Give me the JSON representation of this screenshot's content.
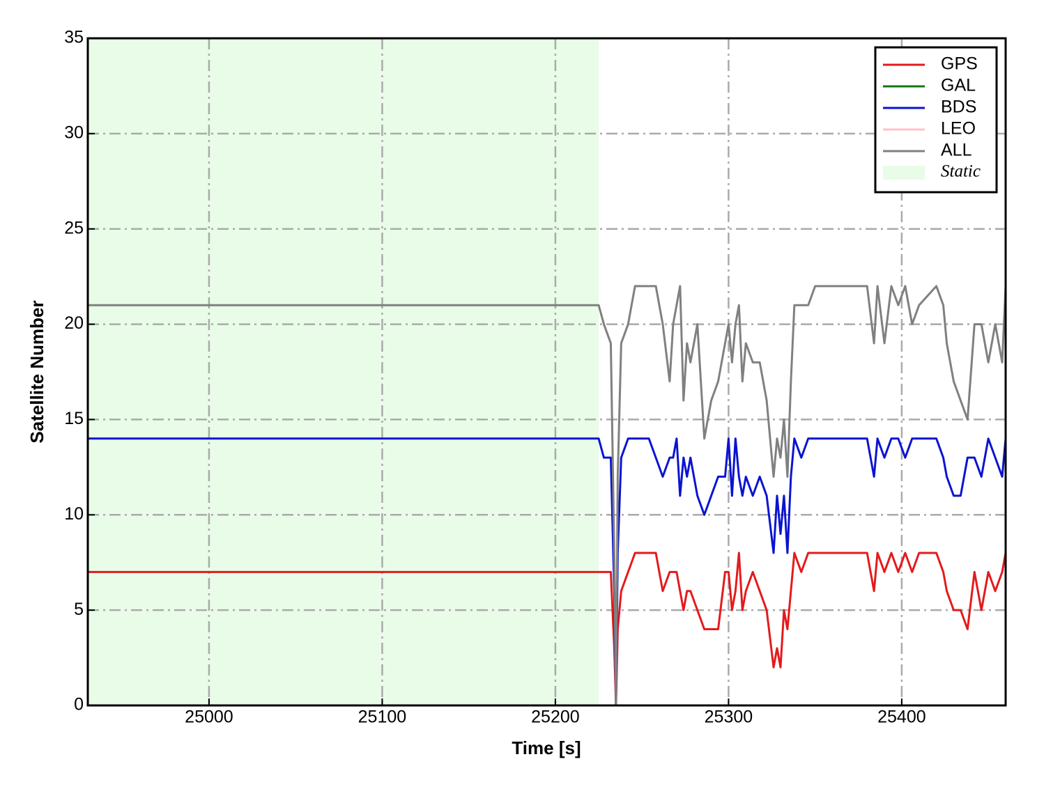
{
  "chart_data": {
    "type": "line",
    "xlabel": "Time [s]",
    "ylabel": "Satellite Number",
    "xlim": [
      24930,
      25460
    ],
    "ylim": [
      0,
      35
    ],
    "xticks": [
      25000,
      25100,
      25200,
      25300,
      25400
    ],
    "yticks": [
      0,
      5,
      10,
      15,
      20,
      25,
      30,
      35
    ],
    "grid": true,
    "legend": "upper right",
    "shade": {
      "name": "Static",
      "color": "#e8fce8",
      "x": [
        24930,
        25225
      ]
    },
    "x": [
      24930,
      25225,
      25228,
      25232,
      25234,
      25235,
      25236,
      25238,
      25242,
      25246,
      25250,
      25254,
      25258,
      25262,
      25266,
      25268,
      25270,
      25272,
      25274,
      25276,
      25278,
      25282,
      25286,
      25290,
      25294,
      25298,
      25300,
      25302,
      25304,
      25306,
      25308,
      25310,
      25314,
      25318,
      25322,
      25326,
      25328,
      25330,
      25332,
      25334,
      25336,
      25338,
      25342,
      25346,
      25350,
      25360,
      25370,
      25380,
      25384,
      25386,
      25390,
      25394,
      25398,
      25402,
      25406,
      25410,
      25420,
      25424,
      25426,
      25430,
      25434,
      25438,
      25442,
      25446,
      25450,
      25454,
      25458,
      25460
    ],
    "series": [
      {
        "name": "GPS",
        "color": "#e41a1c",
        "values": [
          7,
          7,
          7,
          7,
          3,
          0,
          4,
          6,
          7,
          8,
          8,
          8,
          8,
          6,
          7,
          7,
          7,
          6,
          5,
          6,
          6,
          5,
          4,
          4,
          4,
          7,
          7,
          5,
          6,
          8,
          5,
          6,
          7,
          6,
          5,
          2,
          3,
          2,
          5,
          4,
          6,
          8,
          7,
          8,
          8,
          8,
          8,
          8,
          6,
          8,
          7,
          8,
          7,
          8,
          7,
          8,
          8,
          7,
          6,
          5,
          5,
          4,
          7,
          5,
          7,
          6,
          7,
          8
        ]
      },
      {
        "name": "GAL",
        "color": "#117711",
        "values": [
          0,
          0,
          0,
          0,
          0,
          0,
          0,
          0,
          0,
          0,
          0,
          0,
          0,
          0,
          0,
          0,
          0,
          0,
          0,
          0,
          0,
          0,
          0,
          0,
          0,
          0,
          0,
          0,
          0,
          0,
          0,
          0,
          0,
          0,
          0,
          0,
          0,
          0,
          0,
          0,
          0,
          0,
          0,
          0,
          0,
          0,
          0,
          0,
          0,
          0,
          0,
          0,
          0,
          0,
          0,
          0,
          0,
          0,
          0,
          0,
          0,
          0,
          0,
          0,
          0,
          0,
          0,
          0
        ]
      },
      {
        "name": "BDS",
        "color": "#0a14d0",
        "values": [
          14,
          14,
          13,
          13,
          6,
          0,
          8,
          13,
          14,
          14,
          14,
          14,
          13,
          12,
          13,
          13,
          14,
          11,
          13,
          12,
          13,
          11,
          10,
          11,
          12,
          12,
          14,
          11,
          14,
          12,
          11,
          12,
          11,
          12,
          11,
          8,
          11,
          9,
          11,
          8,
          12,
          14,
          13,
          14,
          14,
          14,
          14,
          14,
          12,
          14,
          13,
          14,
          14,
          13,
          14,
          14,
          14,
          13,
          12,
          11,
          11,
          13,
          13,
          12,
          14,
          13,
          12,
          14
        ]
      },
      {
        "name": "LEO",
        "color": "#ffc0cb",
        "values": [
          0,
          0,
          0,
          0,
          0,
          0,
          0,
          0,
          0,
          0,
          0,
          0,
          0,
          0,
          0,
          0,
          0,
          0,
          0,
          0,
          0,
          0,
          0,
          0,
          0,
          0,
          0,
          0,
          0,
          0,
          0,
          0,
          0,
          0,
          0,
          0,
          0,
          0,
          0,
          0,
          0,
          0,
          0,
          0,
          0,
          0,
          0,
          0,
          0,
          0,
          0,
          0,
          0,
          0,
          0,
          0,
          0,
          0,
          0,
          0,
          0,
          0,
          0,
          0,
          0,
          0,
          0,
          0
        ]
      },
      {
        "name": "ALL",
        "color": "#808080",
        "values": [
          21,
          21,
          20,
          19,
          8,
          0,
          12,
          19,
          20,
          22,
          22,
          22,
          22,
          20,
          17,
          20,
          21,
          22,
          16,
          19,
          18,
          20,
          14,
          16,
          17,
          19,
          20,
          18,
          20,
          21,
          17,
          19,
          18,
          18,
          16,
          12,
          14,
          13,
          15,
          12,
          17,
          21,
          21,
          21,
          22,
          22,
          22,
          22,
          19,
          22,
          19,
          22,
          21,
          22,
          20,
          21,
          22,
          21,
          19,
          17,
          16,
          15,
          20,
          20,
          18,
          20,
          18,
          22
        ]
      }
    ]
  }
}
